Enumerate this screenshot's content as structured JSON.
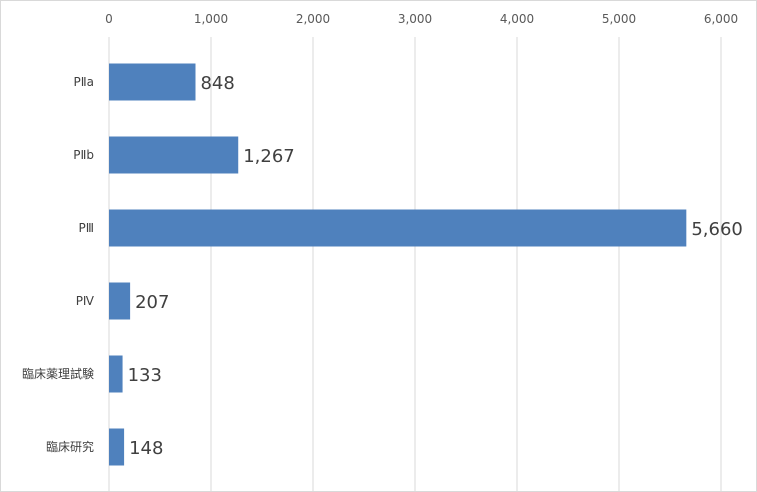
{
  "chart_data": {
    "type": "bar",
    "orientation": "horizontal",
    "categories": [
      "PⅡa",
      "PⅡb",
      "PⅢ",
      "PⅣ",
      "臨床薬理試験",
      "臨床研究"
    ],
    "values": [
      848,
      1267,
      5660,
      207,
      133,
      148
    ],
    "value_labels": [
      "848",
      "1,267",
      "5,660",
      "207",
      "133",
      "148"
    ],
    "xlim": [
      0,
      6000
    ],
    "x_ticks": [
      0,
      1000,
      2000,
      3000,
      4000,
      5000,
      6000
    ],
    "x_tick_labels": [
      "0",
      "1,000",
      "2,000",
      "3,000",
      "4,000",
      "5,000",
      "6,000"
    ],
    "x_axis_position": "top",
    "grid": true,
    "legend": "none",
    "bar_color": "#4f81bd",
    "title": "",
    "xlabel": "",
    "ylabel": ""
  }
}
